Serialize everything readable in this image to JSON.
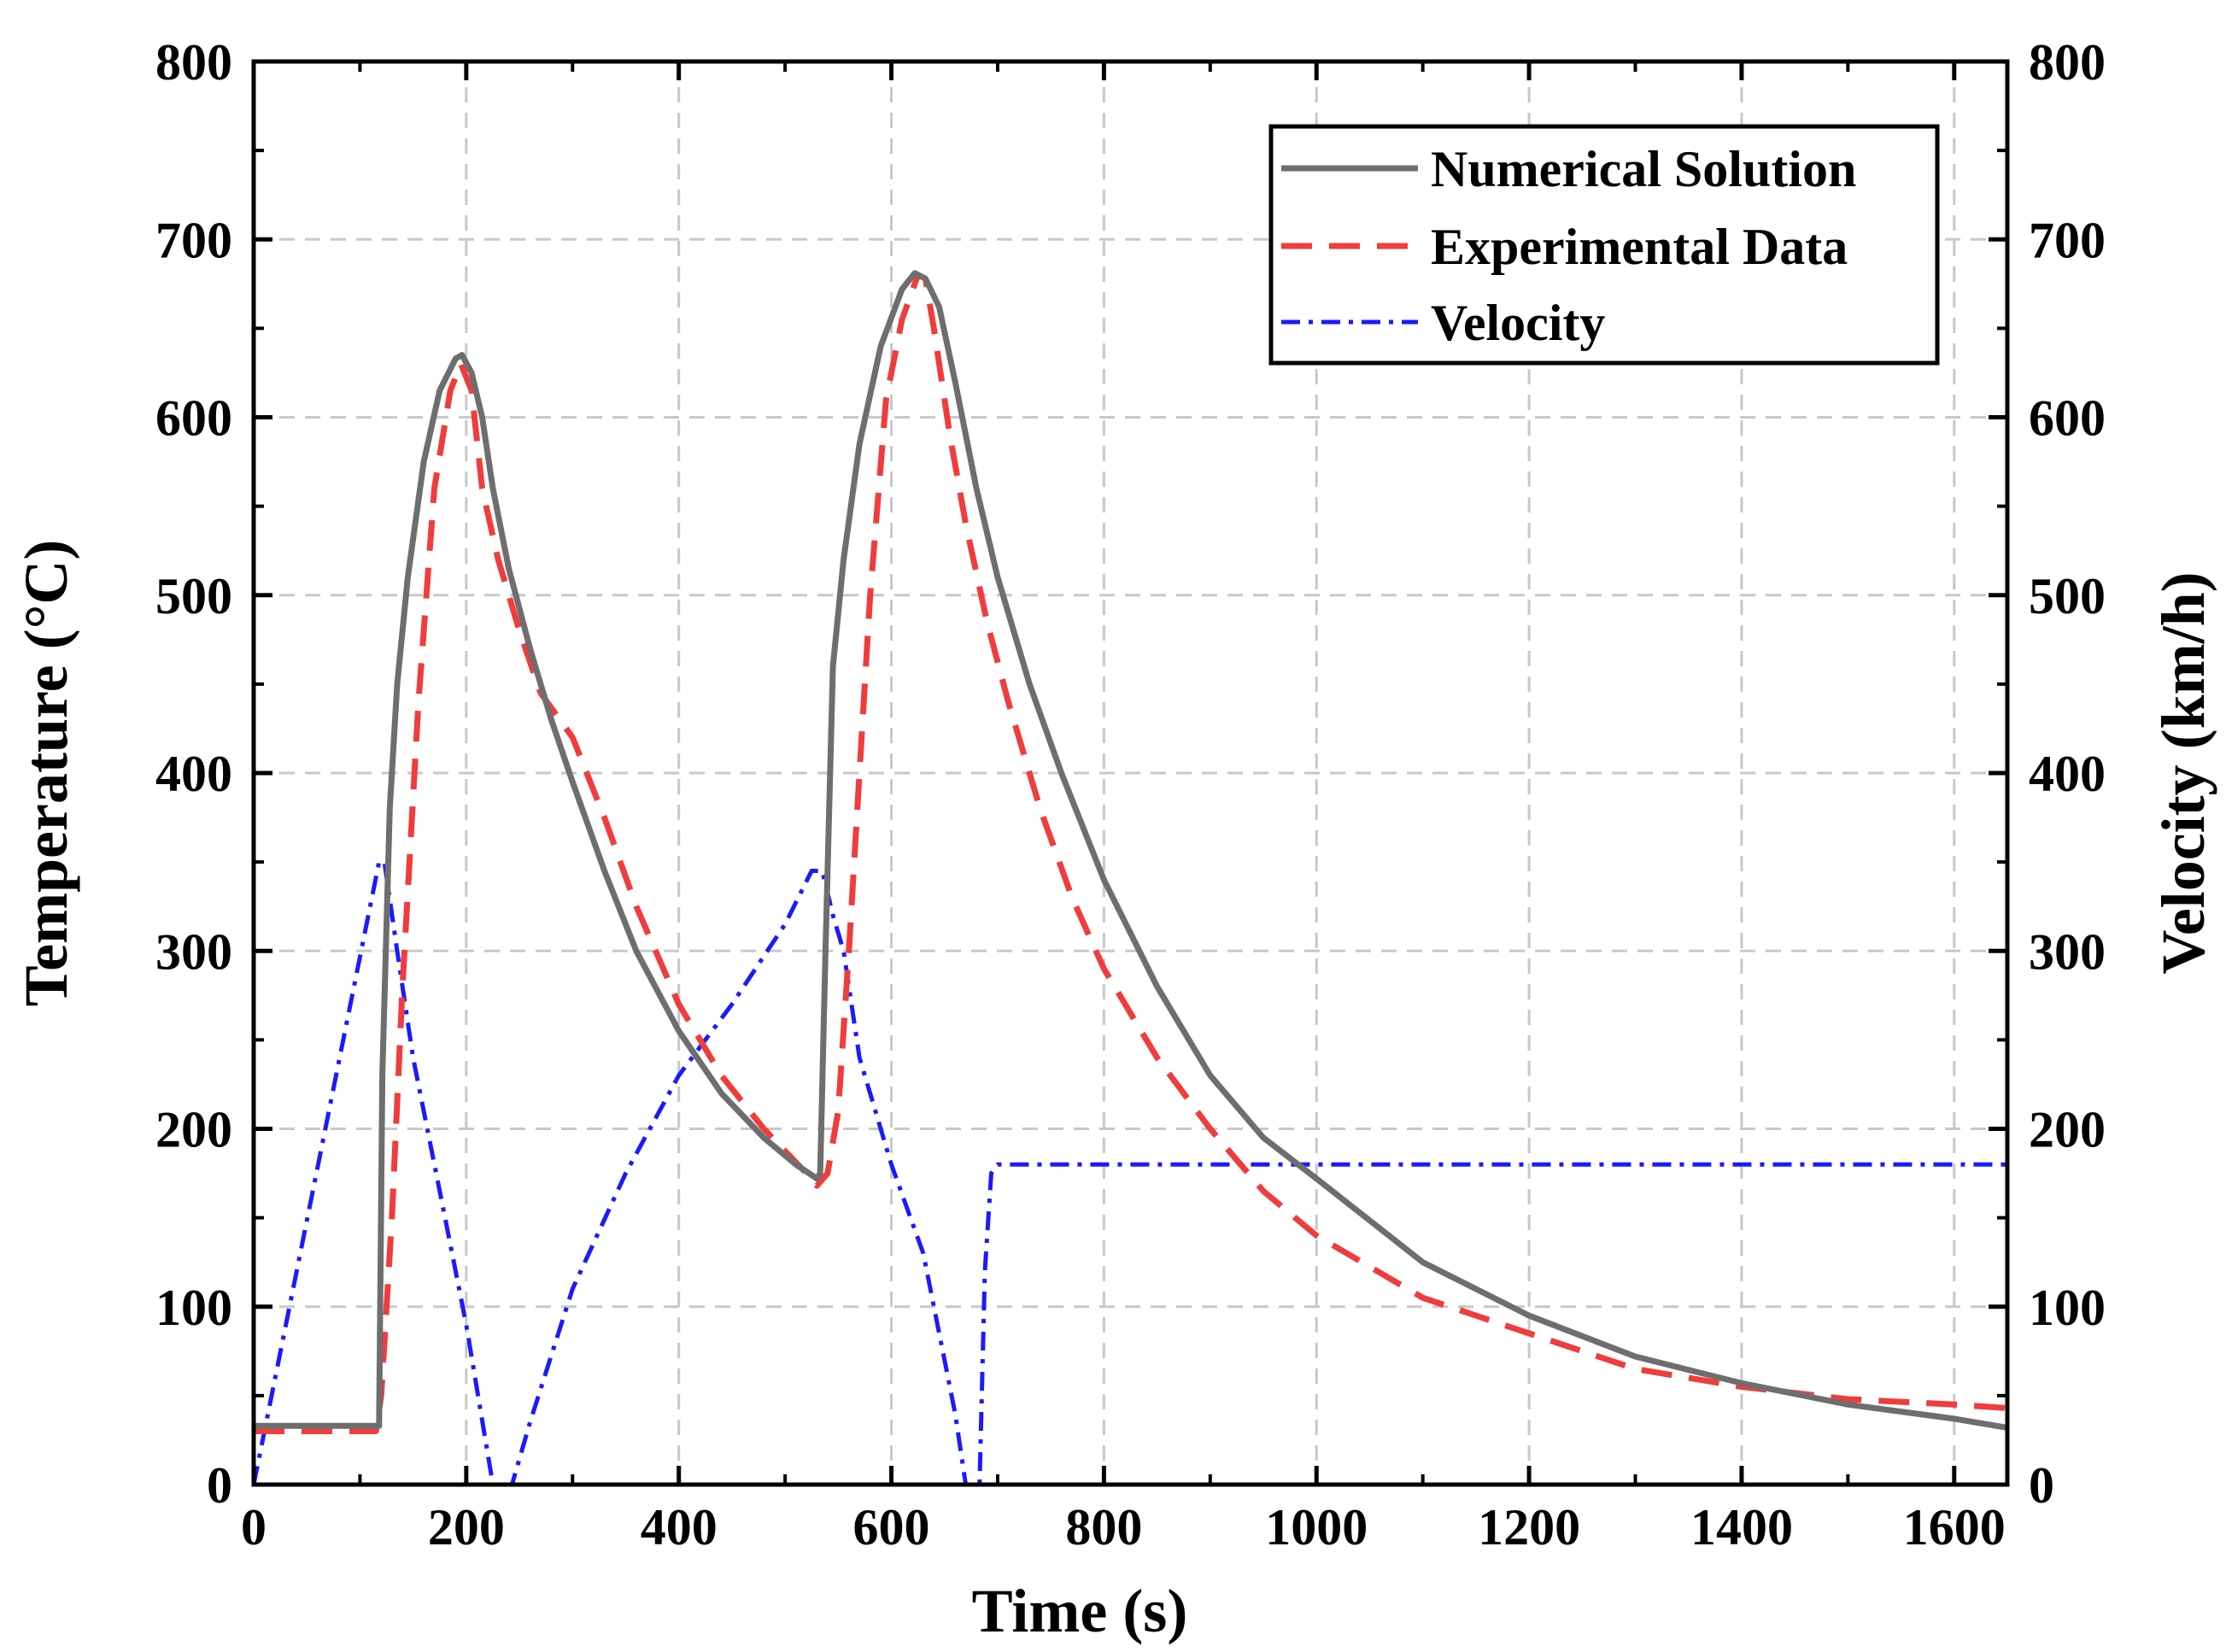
{
  "chart_data": {
    "type": "line",
    "xlabel": "Time (s)",
    "ylabel": "Temperature (°C)",
    "y2label": "Velocity (km/h)",
    "xlim": [
      0,
      1650
    ],
    "ylim": [
      0,
      800
    ],
    "y2lim": [
      0,
      800
    ],
    "x_ticks": [
      0,
      200,
      400,
      600,
      800,
      1000,
      1200,
      1400,
      1600
    ],
    "y_ticks": [
      0,
      100,
      200,
      300,
      400,
      500,
      600,
      700,
      800
    ],
    "y2_ticks": [
      0,
      100,
      200,
      300,
      400,
      500,
      600,
      700,
      800
    ],
    "grid": true,
    "legend_position": "top-right",
    "colors": {
      "numerical": "#6e6e6e",
      "experimental": "#f03c3c",
      "velocity": "#1a1aff",
      "grid": "#c8c8c8"
    },
    "series": [
      {
        "name": "Numerical Solution",
        "axis": "left",
        "style": "solid",
        "x": [
          0,
          60,
          118,
          121,
          128,
          135,
          145,
          160,
          175,
          190,
          196,
          205,
          215,
          225,
          240,
          260,
          280,
          300,
          330,
          360,
          400,
          440,
          480,
          510,
          530,
          533,
          538,
          545,
          555,
          570,
          590,
          610,
          622,
          632,
          645,
          660,
          680,
          700,
          730,
          760,
          800,
          850,
          900,
          950,
          1000,
          1100,
          1200,
          1300,
          1400,
          1500,
          1600,
          1650
        ],
        "values": [
          33,
          33,
          33,
          230,
          380,
          450,
          510,
          575,
          615,
          633,
          635,
          625,
          600,
          560,
          515,
          470,
          430,
          395,
          345,
          300,
          255,
          220,
          195,
          180,
          172,
          175,
          300,
          460,
          520,
          585,
          640,
          672,
          681,
          678,
          662,
          620,
          560,
          510,
          450,
          400,
          340,
          280,
          230,
          195,
          172,
          125,
          95,
          72,
          57,
          45,
          37,
          32
        ]
      },
      {
        "name": "Experimental Data",
        "axis": "left",
        "style": "dash",
        "x": [
          0,
          60,
          115,
          120,
          130,
          140,
          155,
          170,
          185,
          195,
          205,
          215,
          230,
          250,
          270,
          300,
          330,
          360,
          400,
          440,
          480,
          520,
          530,
          540,
          550,
          560,
          570,
          580,
          595,
          610,
          625,
          632,
          640,
          655,
          670,
          690,
          710,
          740,
          770,
          800,
          850,
          900,
          950,
          1000,
          1100,
          1200,
          1300,
          1400,
          1500,
          1600,
          1650
        ],
        "values": [
          30,
          30,
          30,
          50,
          150,
          280,
          440,
          560,
          615,
          630,
          615,
          560,
          520,
          480,
          445,
          420,
          375,
          325,
          270,
          230,
          200,
          175,
          168,
          175,
          210,
          300,
          400,
          500,
          610,
          655,
          680,
          678,
          650,
          590,
          540,
          485,
          440,
          380,
          330,
          290,
          240,
          200,
          165,
          140,
          105,
          85,
          65,
          55,
          48,
          45,
          43
        ]
      },
      {
        "name": "Velocity",
        "axis": "right",
        "style": "dashdot",
        "x": [
          0,
          118,
          123,
          135,
          150,
          180,
          200,
          225,
          235,
          243,
          260,
          300,
          350,
          400,
          450,
          500,
          525,
          535,
          545,
          555,
          570,
          600,
          630,
          660,
          670,
          683,
          688,
          694,
          700,
          1650
        ],
        "values": [
          0,
          350,
          350,
          300,
          240,
          150,
          90,
          0,
          0,
          0,
          35,
          110,
          175,
          230,
          270,
          315,
          345,
          345,
          320,
          300,
          240,
          180,
          130,
          40,
          0,
          0,
          120,
          175,
          180,
          180
        ]
      }
    ]
  }
}
